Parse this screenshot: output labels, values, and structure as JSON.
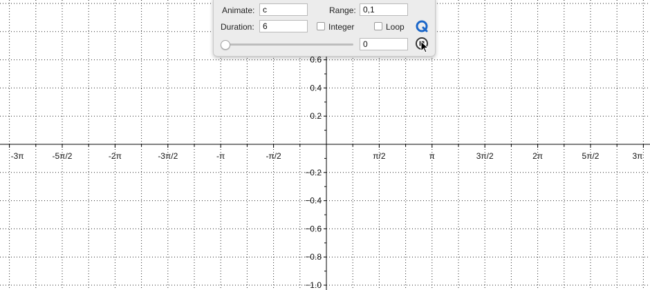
{
  "panel": {
    "animate_label": "Animate:",
    "animate_value": "c",
    "range_label": "Range:",
    "range_value": "0,1",
    "duration_label": "Duration:",
    "duration_value": "6",
    "integer_label": "Integer",
    "integer_checked": false,
    "loop_label": "Loop",
    "loop_checked": false,
    "frame_value": "0",
    "slider_fraction": 0.0,
    "icons": {
      "go": "animate-icon",
      "stop": "stop-icon"
    }
  },
  "graph": {
    "x_ticks": [
      "-3π",
      "-5π/2",
      "-2π",
      "-3π/2",
      "-π",
      "-π/2",
      "π/2",
      "π",
      "3π/2",
      "2π",
      "5π/2",
      "3π"
    ],
    "y_ticks": [
      "0.6",
      "0.4",
      "0.2",
      "−0.2",
      "−0.4",
      "−0.6",
      "−0.8",
      "−1.0"
    ],
    "colors": {
      "axis": "#000000",
      "grid": "#222222",
      "background": "#ffffff"
    }
  }
}
